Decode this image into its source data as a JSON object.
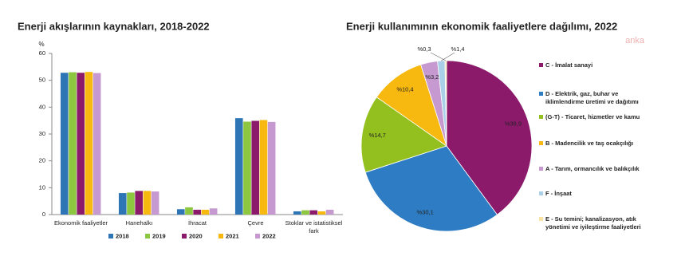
{
  "chart_data": [
    {
      "type": "bar",
      "title": "Enerji akışlarının kaynakları, 2018-2022",
      "y_label": "%",
      "categories": [
        "Ekonomik faaliyetler",
        "Hanehalkı",
        "İhracat",
        "Çevre",
        "Stoklar ve istatistiksel fark"
      ],
      "series": [
        {
          "name": "2018",
          "color": "#2e75b6",
          "values": [
            52.8,
            8.0,
            2.0,
            35.9,
            1.2
          ]
        },
        {
          "name": "2019",
          "color": "#8dc63f",
          "values": [
            53.0,
            8.2,
            2.7,
            34.6,
            1.6
          ]
        },
        {
          "name": "2020",
          "color": "#8b1a6b",
          "values": [
            52.8,
            8.8,
            1.8,
            34.9,
            1.6
          ]
        },
        {
          "name": "2021",
          "color": "#f7b90f",
          "values": [
            53.1,
            8.8,
            1.8,
            35.2,
            1.2
          ]
        },
        {
          "name": "2022",
          "color": "#c69ad0",
          "values": [
            52.7,
            8.6,
            2.3,
            34.5,
            1.8
          ]
        }
      ],
      "ylim": [
        0,
        60
      ],
      "yticks": [
        0,
        10,
        20,
        30,
        40,
        50,
        60
      ]
    },
    {
      "type": "pie",
      "title": "Enerji kullanımının ekonomik faaliyetlere dağılımı, 2022",
      "watermark": "anka",
      "categories": [
        "C - İmalat sanayi",
        "D - Elektrik, gaz, buhar ve iklimlendirme üretimi ve dağıtımı",
        "(G-T) - Ticaret, hizmetler ve kamu",
        "B - Madencilik ve taş ocakçılığı",
        "A - Tarım, ormancılık ve balıkçılık",
        "F - İnşaat",
        "E - Su temini; kanalizasyon, atık yönetimi ve iyileştirme faaliyetleri"
      ],
      "values": [
        39.9,
        30.1,
        14.7,
        10.4,
        3.2,
        1.4,
        0.3
      ],
      "value_labels": [
        "%39,9",
        "%30,1",
        "%14,7",
        "%10,4",
        "%3,2",
        "%1,4",
        "%0,3"
      ],
      "colors": [
        "#8b1a6b",
        "#2e7dc4",
        "#93c01f",
        "#f7b90f",
        "#c69ad0",
        "#a9cfe9",
        "#fbe3a6"
      ]
    }
  ]
}
